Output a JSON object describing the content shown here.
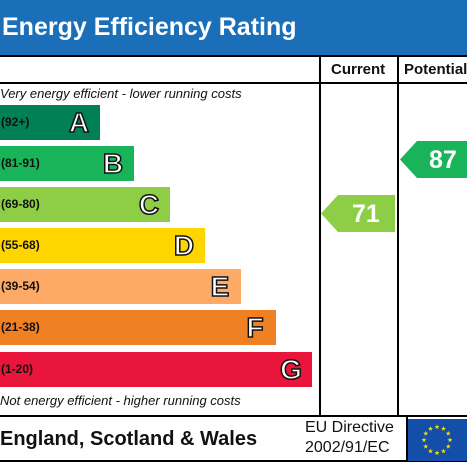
{
  "title": "Energy Efficiency Rating",
  "columns": {
    "current": "Current",
    "potential": "Potential"
  },
  "top_note": "Very energy efficient - lower running costs",
  "bottom_note": "Not energy efficient - higher running costs",
  "bands": [
    {
      "range": "(92+)",
      "letter": "A",
      "color": "#008054"
    },
    {
      "range": "(81-91)",
      "letter": "B",
      "color": "#19b459"
    },
    {
      "range": "(69-80)",
      "letter": "C",
      "color": "#8dce46"
    },
    {
      "range": "(55-68)",
      "letter": "D",
      "color": "#ffd500"
    },
    {
      "range": "(39-54)",
      "letter": "E",
      "color": "#fcaa65"
    },
    {
      "range": "(21-38)",
      "letter": "F",
      "color": "#ef8023"
    },
    {
      "range": "(1-20)",
      "letter": "G",
      "color": "#e9153b"
    }
  ],
  "current_rating": {
    "value": "71",
    "band": "C",
    "color": "#8dce46"
  },
  "potential_rating": {
    "value": "87",
    "band": "B",
    "color": "#19b459"
  },
  "footer": {
    "region": "England, Scotland & Wales",
    "directive_line1": "EU Directive",
    "directive_line2": "2002/91/EC"
  },
  "colors": {
    "header": "#1a6fb8",
    "flag": "#134fa8",
    "flag_stars": "#ffdd00"
  }
}
